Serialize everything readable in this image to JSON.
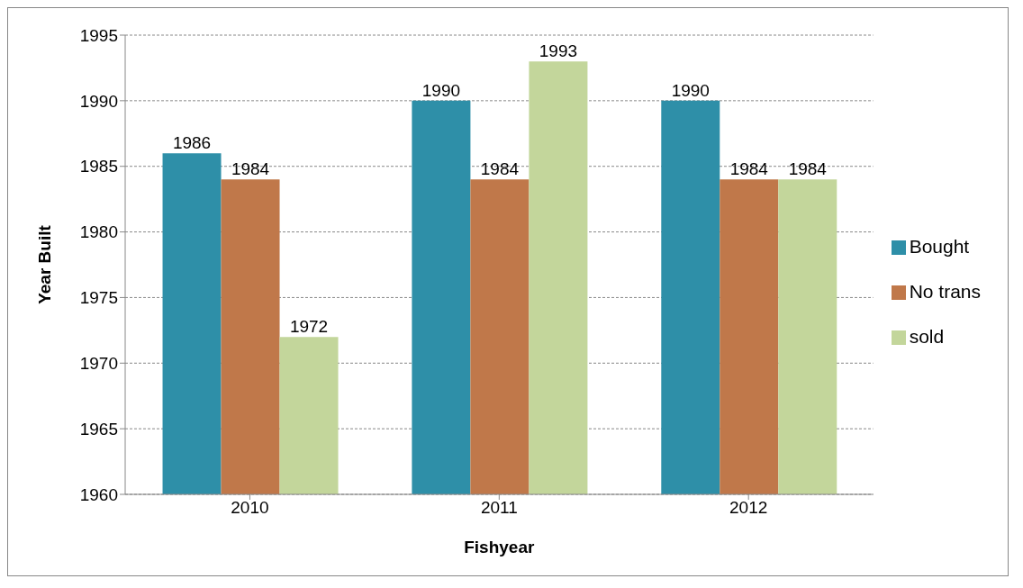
{
  "chart_data": {
    "type": "bar",
    "xlabel": "Fishyear",
    "ylabel": "Year Built",
    "categories": [
      "2010",
      "2011",
      "2012"
    ],
    "series": [
      {
        "name": "Bought",
        "color": "#2e8fa8",
        "values": [
          1986,
          1990,
          1990
        ]
      },
      {
        "name": "No trans",
        "color": "#c0784a",
        "values": [
          1984,
          1984,
          1984
        ]
      },
      {
        "name": "sold",
        "color": "#c3d69b",
        "values": [
          1972,
          1993,
          1984
        ]
      }
    ],
    "ylim": [
      1960,
      1995
    ],
    "yticks": [
      1960,
      1965,
      1970,
      1975,
      1980,
      1985,
      1990,
      1995
    ],
    "grid": "y",
    "legend": "right",
    "data_labels": true
  }
}
